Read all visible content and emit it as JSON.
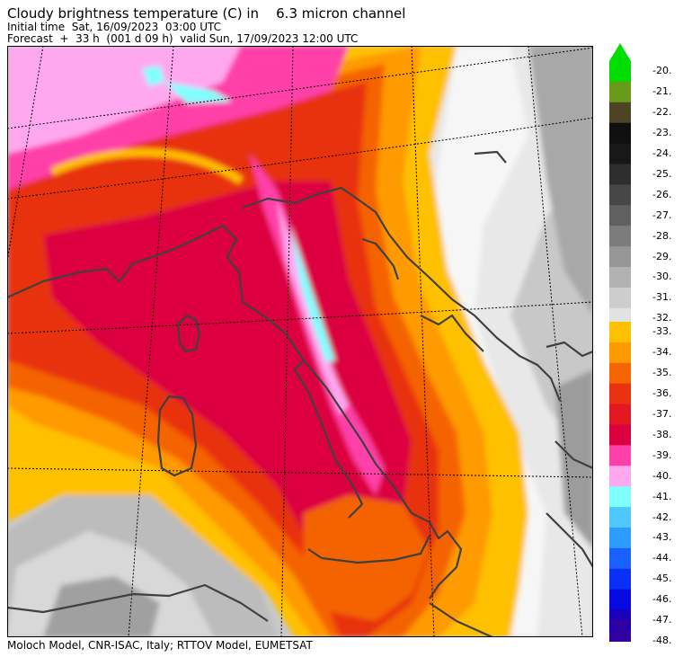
{
  "header": {
    "title": "Cloudy brightness temperature (C) in    6.3 micron channel",
    "initial_time": "Initial time  Sat, 16/09/2023  03:00 UTC",
    "forecast": "Forecast  +  33 h  (001 d 09 h)  valid Sun, 17/09/2023 12:00 UTC"
  },
  "footer": "Moloch Model, CNR-ISAC, Italy; RTTOV Model, EUMETSAT",
  "colorbar": {
    "upper_ticks": [
      "-20.",
      "-21.",
      "-22.",
      "-23.",
      "-24.",
      "-25.",
      "-26.",
      "-27.",
      "-28.",
      "-29.",
      "-30.",
      "-31.",
      "-32."
    ],
    "upper_colors": [
      "#00dd00",
      "#6a9a1a",
      "#4e4324",
      "#101010",
      "#181818",
      "#2e2e2e",
      "#474747",
      "#606060",
      "#7c7c7c",
      "#969696",
      "#b2b2b2",
      "#cdcdcd",
      "#e2e2e2"
    ],
    "lower_ticks": [
      "-33.",
      "-34.",
      "-35.",
      "-36.",
      "-37.",
      "-38.",
      "-39.",
      "-40.",
      "-41.",
      "-42.",
      "-43.",
      "-44.",
      "-45.",
      "-46.",
      "-47.",
      "-48."
    ],
    "lower_colors": [
      "#ffc000",
      "#ff9a00",
      "#f46400",
      "#e83210",
      "#e41820",
      "#dc0040",
      "#ff40a8",
      "#ffa8f0",
      "#80ffff",
      "#50c8ff",
      "#2c9cff",
      "#1860ff",
      "#0a30f8",
      "#0808e0",
      "#1a00b8",
      "#3000a0"
    ],
    "arrow_top_color": "#00dd00",
    "arrow_bottom_color": "#3000a0"
  }
}
